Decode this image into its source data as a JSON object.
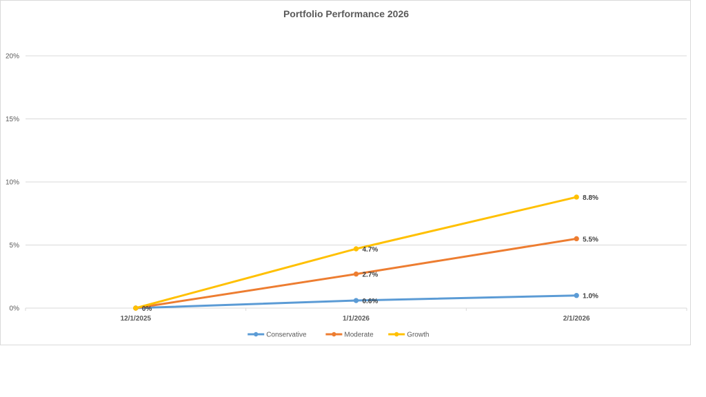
{
  "chart_data": {
    "type": "line",
    "title": "Portfolio Performance 2026",
    "categories": [
      "12/1/2025",
      "1/1/2026",
      "2/1/2026"
    ],
    "yticks": [
      "0%",
      "5%",
      "10%",
      "15%",
      "20%"
    ],
    "ylim": [
      0,
      20
    ],
    "grid": true,
    "legend_position": "bottom",
    "series": [
      {
        "name": "Conservative",
        "values": [
          0,
          0.6,
          1.0
        ],
        "labels": [
          "",
          "0.6%",
          "1.0%"
        ],
        "color": "#5b9bd5"
      },
      {
        "name": "Moderate",
        "values": [
          0,
          2.7,
          5.5
        ],
        "labels": [
          "",
          "2.7%",
          "5.5%"
        ],
        "color": "#ed7d31"
      },
      {
        "name": "Growth",
        "values": [
          0,
          4.7,
          8.8
        ],
        "labels": [
          "0%",
          "4.7%",
          "8.8%"
        ],
        "color": "#ffc000"
      }
    ]
  }
}
